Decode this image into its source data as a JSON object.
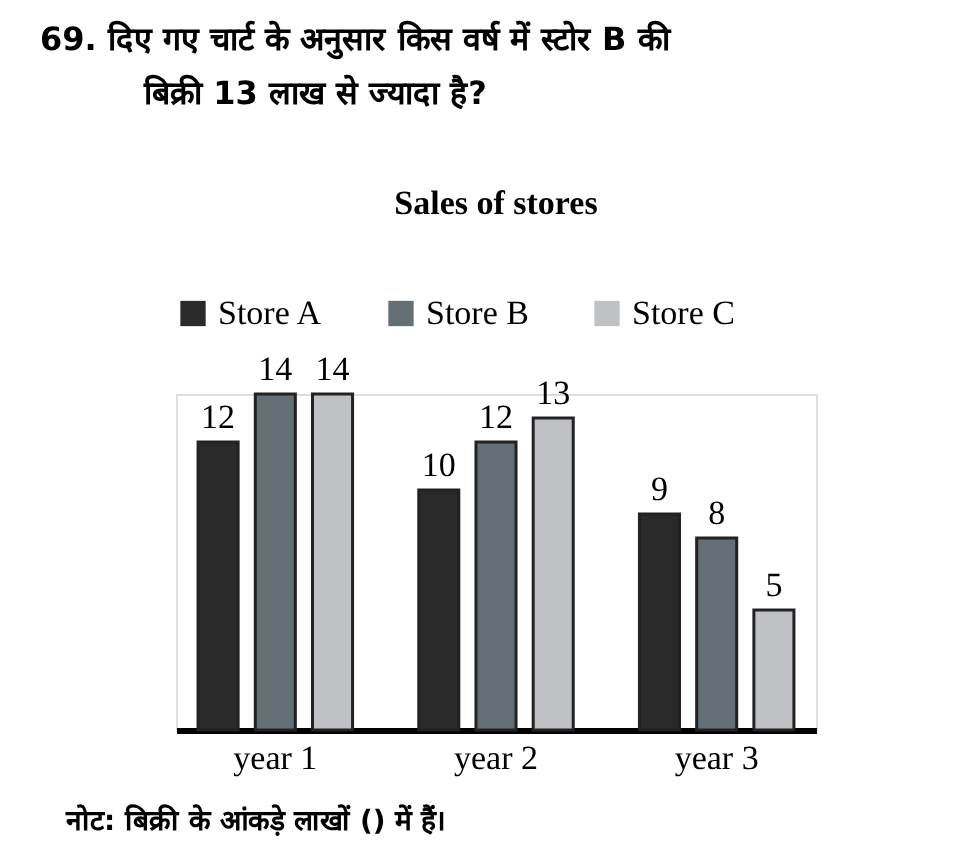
{
  "chart_data": {
    "type": "bar",
    "title": "Sales of stores",
    "categories": [
      "year 1",
      "year 2",
      "year 3"
    ],
    "series": [
      {
        "name": "Store A",
        "color": "#2a2a2a",
        "values": [
          12,
          10,
          9
        ]
      },
      {
        "name": "Store B",
        "color": "#636e75",
        "values": [
          14,
          12,
          8
        ]
      },
      {
        "name": "Store C",
        "color": "#bfc1c5",
        "values": [
          14,
          13,
          5
        ]
      }
    ],
    "data_labels": true,
    "legend": "top",
    "grid": false,
    "annotations": [
      "69.  दिए गए चार्ट के अनुसार किस वर्ष में स्टोर B की",
      "बिक्री 13 लाख से ज्यादा है?",
      "नोट: बिक्री के आंकड़े लाखों () में हैं।"
    ]
  }
}
